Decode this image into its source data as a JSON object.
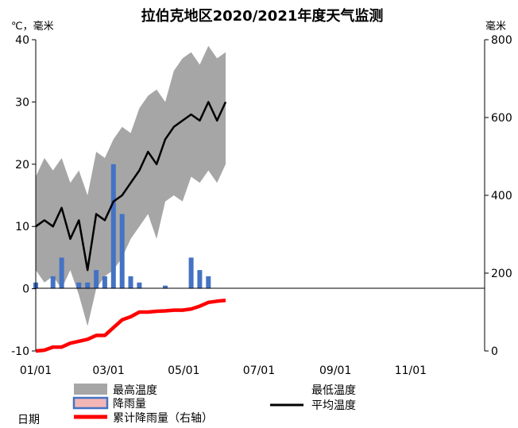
{
  "chart_data": {
    "type": "line",
    "title": "拉伯克地区2020/2021年度天气监测",
    "left_axis_unit": "℃，毫米",
    "right_axis_unit": "毫米",
    "date_label": "日期",
    "x_range": [
      "2021-01-01",
      "2021-12-31"
    ],
    "x_ticks": [
      "01/01",
      "03/01",
      "05/01",
      "07/01",
      "09/01",
      "11/01"
    ],
    "y_left": {
      "min": -10,
      "max": 40,
      "ticks": [
        -10,
        0,
        10,
        20,
        30,
        40
      ]
    },
    "y_right": {
      "min": 0,
      "max": 800,
      "ticks": [
        0,
        200,
        400,
        600,
        800
      ]
    },
    "legend": [
      {
        "label": "最高温度",
        "color": "#a6a6a6",
        "kind": "band"
      },
      {
        "label": "降雨量",
        "color": "#4472c4",
        "kind": "bar"
      },
      {
        "label": "累计降雨量（右轴）",
        "color": "#ff0000",
        "kind": "line"
      },
      {
        "label": "最低温度",
        "kind": "band-low"
      },
      {
        "label": "平均温度",
        "color": "#000000",
        "kind": "line"
      }
    ],
    "weekly_dates": [
      "2021-01-01",
      "2021-01-08",
      "2021-01-15",
      "2021-01-22",
      "2021-01-29",
      "2021-02-05",
      "2021-02-12",
      "2021-02-19",
      "2021-02-26",
      "2021-03-05",
      "2021-03-12",
      "2021-03-19",
      "2021-03-26",
      "2021-04-02",
      "2021-04-09",
      "2021-04-16",
      "2021-04-23",
      "2021-04-30",
      "2021-05-07",
      "2021-05-14",
      "2021-05-21",
      "2021-05-28",
      "2021-06-04"
    ],
    "series": [
      {
        "name": "最高温度",
        "values": [
          18,
          21,
          19,
          21,
          17,
          19,
          15,
          22,
          21,
          24,
          26,
          25,
          29,
          31,
          32,
          30,
          35,
          37,
          38,
          36,
          39,
          37,
          38
        ]
      },
      {
        "name": "最低温度",
        "values": [
          3,
          1,
          2,
          0,
          3,
          -1,
          -6,
          0,
          2,
          3,
          5,
          8,
          10,
          12,
          8,
          14,
          15,
          14,
          18,
          17,
          19,
          17,
          20
        ]
      },
      {
        "name": "平均温度",
        "values": [
          10,
          11,
          10,
          13,
          8,
          11,
          3,
          12,
          11,
          14,
          15,
          17,
          19,
          22,
          20,
          24,
          26,
          27,
          28,
          27,
          30,
          27,
          30
        ]
      },
      {
        "name": "降雨量",
        "values": [
          1,
          0,
          2,
          5,
          0,
          1,
          1,
          3,
          2,
          20,
          12,
          2,
          1,
          0,
          0,
          0.5,
          0,
          0,
          5,
          3,
          2,
          0,
          0
        ]
      },
      {
        "name": "累计降雨量（右轴）",
        "values": [
          0,
          2,
          10,
          10,
          20,
          25,
          30,
          40,
          40,
          60,
          80,
          88,
          100,
          100,
          102,
          103,
          105,
          105,
          108,
          115,
          125,
          128,
          130
        ]
      }
    ]
  }
}
